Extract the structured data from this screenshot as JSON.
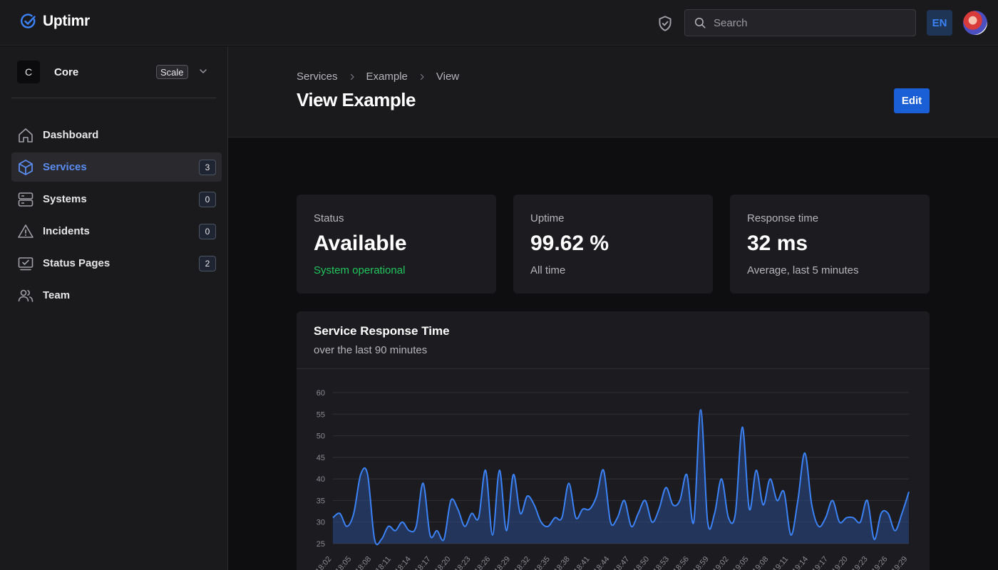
{
  "header": {
    "brand": "Uptimr",
    "search_placeholder": "Search",
    "language": "EN"
  },
  "sidebar": {
    "team": {
      "initial": "C",
      "name": "Core",
      "plan": "Scale"
    },
    "items": [
      {
        "label": "Dashboard",
        "count": null,
        "icon": "home-icon",
        "active": false
      },
      {
        "label": "Services",
        "count": "3",
        "icon": "cube-icon",
        "active": true
      },
      {
        "label": "Systems",
        "count": "0",
        "icon": "server-icon",
        "active": false
      },
      {
        "label": "Incidents",
        "count": "0",
        "icon": "warning-icon",
        "active": false
      },
      {
        "label": "Status Pages",
        "count": "2",
        "icon": "monitor-icon",
        "active": false
      },
      {
        "label": "Team",
        "count": null,
        "icon": "users-icon",
        "active": false
      }
    ]
  },
  "page": {
    "breadcrumb": [
      "Services",
      "Example",
      "View"
    ],
    "title": "View Example",
    "edit_label": "Edit"
  },
  "stats": [
    {
      "label": "Status",
      "value": "Available",
      "sub": "System operational",
      "sub_color": "#22c55e"
    },
    {
      "label": "Uptime",
      "value": "99.62 %",
      "sub": "All time"
    },
    {
      "label": "Response time",
      "value": "32 ms",
      "sub": "Average, last 5 minutes"
    }
  ],
  "colors": {
    "accent": "#3b82f6",
    "primary_button": "#1a5fd6",
    "success": "#22c55e"
  },
  "chart_data": {
    "type": "area",
    "title": "Service Response Time",
    "subtitle": "over the last 90 minutes",
    "ylim": [
      25,
      60
    ],
    "yticks": [
      25,
      30,
      35,
      40,
      45,
      50,
      55,
      60
    ],
    "xtick_labels": [
      "18:02",
      "18:05",
      "18:08",
      "18:11",
      "18:14",
      "18:17",
      "18:20",
      "18:23",
      "18:26",
      "18:29",
      "18:32",
      "18:35",
      "18:38",
      "18:41",
      "18:44",
      "18:47",
      "18:50",
      "18:53",
      "18:56",
      "18:59",
      "19:02",
      "19:05",
      "19:08",
      "19:11",
      "19:14",
      "19:17",
      "19:20",
      "19:23",
      "19:26",
      "19:29"
    ],
    "series": [
      {
        "values": [
          31,
          32,
          29,
          32,
          41,
          41,
          26,
          26,
          29,
          28,
          30,
          28,
          29,
          39,
          27,
          28,
          26,
          35,
          33,
          29,
          32,
          31,
          42,
          27,
          42,
          28,
          41,
          32,
          36,
          34,
          30,
          29,
          31,
          31,
          39,
          31,
          33,
          33,
          36,
          42,
          30,
          31,
          35,
          29,
          32,
          35,
          30,
          33,
          38,
          34,
          35,
          41,
          30,
          56,
          30,
          32,
          40,
          31,
          32,
          52,
          33,
          42,
          34,
          40,
          35,
          37,
          27,
          35,
          46,
          34,
          29,
          31,
          35,
          30,
          31,
          31,
          30,
          35,
          26,
          32,
          32,
          28,
          32,
          37
        ],
        "color": "#3b82f6"
      }
    ],
    "grid": true
  }
}
